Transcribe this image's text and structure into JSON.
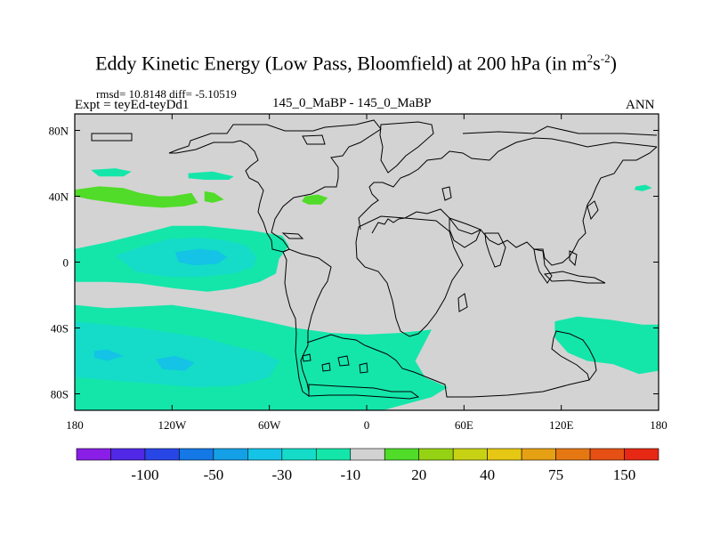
{
  "chart_data": {
    "type": "heatmap",
    "title": "Eddy Kinetic Energy (Low Pass, Bloomfield) at 200 hPa (in m",
    "title_unit_sup1": "2",
    "title_unit_mid": "s",
    "title_unit_sup2": "-2",
    "title_unit_end": ")",
    "stats": "rmsd= 10.8148 diff= -5.10519",
    "experiment": "Expt = teyEd-teyDd1",
    "center_label": "145_0_MaBP - 145_0_MaBP",
    "season": "ANN",
    "xlim": [
      -180,
      180
    ],
    "ylim": [
      -90,
      90
    ],
    "x_ticks": [
      {
        "value": -180,
        "label": "180"
      },
      {
        "value": -120,
        "label": "120W"
      },
      {
        "value": -60,
        "label": "60W"
      },
      {
        "value": 0,
        "label": "0"
      },
      {
        "value": 60,
        "label": "60E"
      },
      {
        "value": 120,
        "label": "120E"
      },
      {
        "value": 180,
        "label": "180"
      }
    ],
    "y_ticks": [
      {
        "value": 80,
        "label": "80N"
      },
      {
        "value": 40,
        "label": "40N"
      },
      {
        "value": 0,
        "label": "0"
      },
      {
        "value": -40,
        "label": "40S"
      },
      {
        "value": -80,
        "label": "80S"
      }
    ],
    "background_color": "#d3d3d3",
    "colorbar": {
      "colors": [
        "#8a1ee6",
        "#5028e6",
        "#2846e6",
        "#1478e6",
        "#14a0e6",
        "#14c3e6",
        "#14dcc8",
        "#14e6aa",
        "#d2d2d2",
        "#50dc28",
        "#96d214",
        "#c8d214",
        "#e6c814",
        "#e6a014",
        "#e67814",
        "#e65014",
        "#e62814"
      ],
      "labels": [
        {
          "after_box": 1,
          "text": "-100"
        },
        {
          "after_box": 3,
          "text": "-50"
        },
        {
          "after_box": 5,
          "text": "-30"
        },
        {
          "after_box": 7,
          "text": "-10"
        },
        {
          "after_box": 9,
          "text": "20"
        },
        {
          "after_box": 11,
          "text": "40"
        },
        {
          "after_box": 13,
          "text": "75"
        },
        {
          "after_box": 15,
          "text": "150"
        }
      ]
    },
    "regions": [
      {
        "name": "nh-green-patch-west",
        "value": 5,
        "color": "#50dc28",
        "points": [
          [
            -180,
            44
          ],
          [
            -165,
            46
          ],
          [
            -150,
            45
          ],
          [
            -140,
            42
          ],
          [
            -128,
            40
          ],
          [
            -120,
            40
          ],
          [
            -108,
            42
          ],
          [
            -104,
            36
          ],
          [
            -112,
            34
          ],
          [
            -126,
            33
          ],
          [
            -140,
            34
          ],
          [
            -156,
            36
          ],
          [
            -170,
            38
          ],
          [
            -180,
            40
          ]
        ]
      },
      {
        "name": "nh-green-patch-small",
        "value": 5,
        "color": "#50dc28",
        "points": [
          [
            -100,
            43
          ],
          [
            -94,
            42
          ],
          [
            -88,
            38
          ],
          [
            -95,
            36
          ],
          [
            -100,
            37
          ]
        ]
      },
      {
        "name": "nh-green-patch-atlantic",
        "value": 5,
        "color": "#50dc28",
        "points": [
          [
            -38,
            40
          ],
          [
            -30,
            41
          ],
          [
            -24,
            39
          ],
          [
            -28,
            35
          ],
          [
            -36,
            35
          ],
          [
            -40,
            37
          ]
        ]
      },
      {
        "name": "nh-cyan-patch-pacific",
        "value": -15,
        "color": "#14e6aa",
        "points": [
          [
            -170,
            56
          ],
          [
            -155,
            57
          ],
          [
            -145,
            55
          ],
          [
            -150,
            52
          ],
          [
            -165,
            52
          ]
        ]
      },
      {
        "name": "nh-cyan-patch-americas",
        "value": -15,
        "color": "#14e6aa",
        "points": [
          [
            -110,
            54
          ],
          [
            -95,
            55
          ],
          [
            -82,
            52
          ],
          [
            -85,
            50
          ],
          [
            -100,
            50
          ],
          [
            -110,
            51
          ]
        ]
      },
      {
        "name": "nh-cyan-patch-east",
        "value": -15,
        "color": "#14e6aa",
        "points": [
          [
            166,
            46
          ],
          [
            172,
            47
          ],
          [
            176,
            45
          ],
          [
            170,
            43
          ],
          [
            165,
            44
          ]
        ]
      },
      {
        "name": "eq-band-outer",
        "value": -15,
        "color": "#14e6aa",
        "points": [
          [
            -180,
            8
          ],
          [
            -160,
            12
          ],
          [
            -140,
            17
          ],
          [
            -120,
            22
          ],
          [
            -100,
            22
          ],
          [
            -70,
            19
          ],
          [
            -52,
            16
          ],
          [
            -48,
            10
          ],
          [
            -54,
            2
          ],
          [
            -56,
            -7
          ],
          [
            -66,
            -12
          ],
          [
            -82,
            -16
          ],
          [
            -98,
            -18
          ],
          [
            -118,
            -16
          ],
          [
            -140,
            -13
          ],
          [
            -160,
            -12
          ],
          [
            -180,
            -12
          ]
        ]
      },
      {
        "name": "eq-band-inner",
        "value": -25,
        "color": "#14dcc8",
        "points": [
          [
            -155,
            4
          ],
          [
            -140,
            9
          ],
          [
            -122,
            14
          ],
          [
            -104,
            15
          ],
          [
            -86,
            13
          ],
          [
            -74,
            10
          ],
          [
            -68,
            3
          ],
          [
            -70,
            -3
          ],
          [
            -82,
            -7
          ],
          [
            -102,
            -9
          ],
          [
            -122,
            -9
          ],
          [
            -142,
            -6
          ]
        ]
      },
      {
        "name": "eq-band-core",
        "value": -35,
        "color": "#14c3e6",
        "points": [
          [
            -118,
            6
          ],
          [
            -104,
            8
          ],
          [
            -92,
            7
          ],
          [
            -86,
            3
          ],
          [
            -92,
            -1
          ],
          [
            -106,
            -2
          ],
          [
            -116,
            0
          ]
        ]
      },
      {
        "name": "sh-band-outer",
        "value": -15,
        "color": "#14e6aa",
        "points": [
          [
            -180,
            -26
          ],
          [
            -160,
            -28
          ],
          [
            -140,
            -27
          ],
          [
            -120,
            -26
          ],
          [
            -100,
            -29
          ],
          [
            -82,
            -32
          ],
          [
            -62,
            -36
          ],
          [
            -44,
            -40
          ],
          [
            -22,
            -43
          ],
          [
            0,
            -44
          ],
          [
            20,
            -43
          ],
          [
            40,
            -41
          ],
          [
            30,
            -60
          ],
          [
            36,
            -70
          ],
          [
            50,
            -76
          ],
          [
            40,
            -82
          ],
          [
            10,
            -90
          ],
          [
            -180,
            -90
          ]
        ]
      },
      {
        "name": "sh-band-inner",
        "value": -25,
        "color": "#14dcc8",
        "points": [
          [
            -180,
            -36
          ],
          [
            -160,
            -38
          ],
          [
            -140,
            -40
          ],
          [
            -120,
            -43
          ],
          [
            -100,
            -46
          ],
          [
            -82,
            -51
          ],
          [
            -64,
            -55
          ],
          [
            -54,
            -60
          ],
          [
            -60,
            -70
          ],
          [
            -80,
            -75
          ],
          [
            -105,
            -76
          ],
          [
            -130,
            -74
          ],
          [
            -155,
            -72
          ],
          [
            -180,
            -70
          ]
        ]
      },
      {
        "name": "sh-band-core-west",
        "value": -35,
        "color": "#14c3e6",
        "points": [
          [
            -168,
            -54
          ],
          [
            -160,
            -53
          ],
          [
            -150,
            -57
          ],
          [
            -160,
            -60
          ],
          [
            -168,
            -58
          ]
        ]
      },
      {
        "name": "sh-band-core-east",
        "value": -35,
        "color": "#14c3e6",
        "points": [
          [
            -130,
            -59
          ],
          [
            -118,
            -57
          ],
          [
            -106,
            -61
          ],
          [
            -112,
            -66
          ],
          [
            -126,
            -65
          ]
        ]
      },
      {
        "name": "sh-east-patch",
        "value": -15,
        "color": "#14e6aa",
        "points": [
          [
            116,
            -36
          ],
          [
            130,
            -33
          ],
          [
            150,
            -35
          ],
          [
            170,
            -38
          ],
          [
            180,
            -38
          ],
          [
            180,
            -66
          ],
          [
            168,
            -68
          ],
          [
            152,
            -62
          ],
          [
            136,
            -60
          ],
          [
            124,
            -55
          ],
          [
            116,
            -46
          ]
        ]
      }
    ]
  }
}
